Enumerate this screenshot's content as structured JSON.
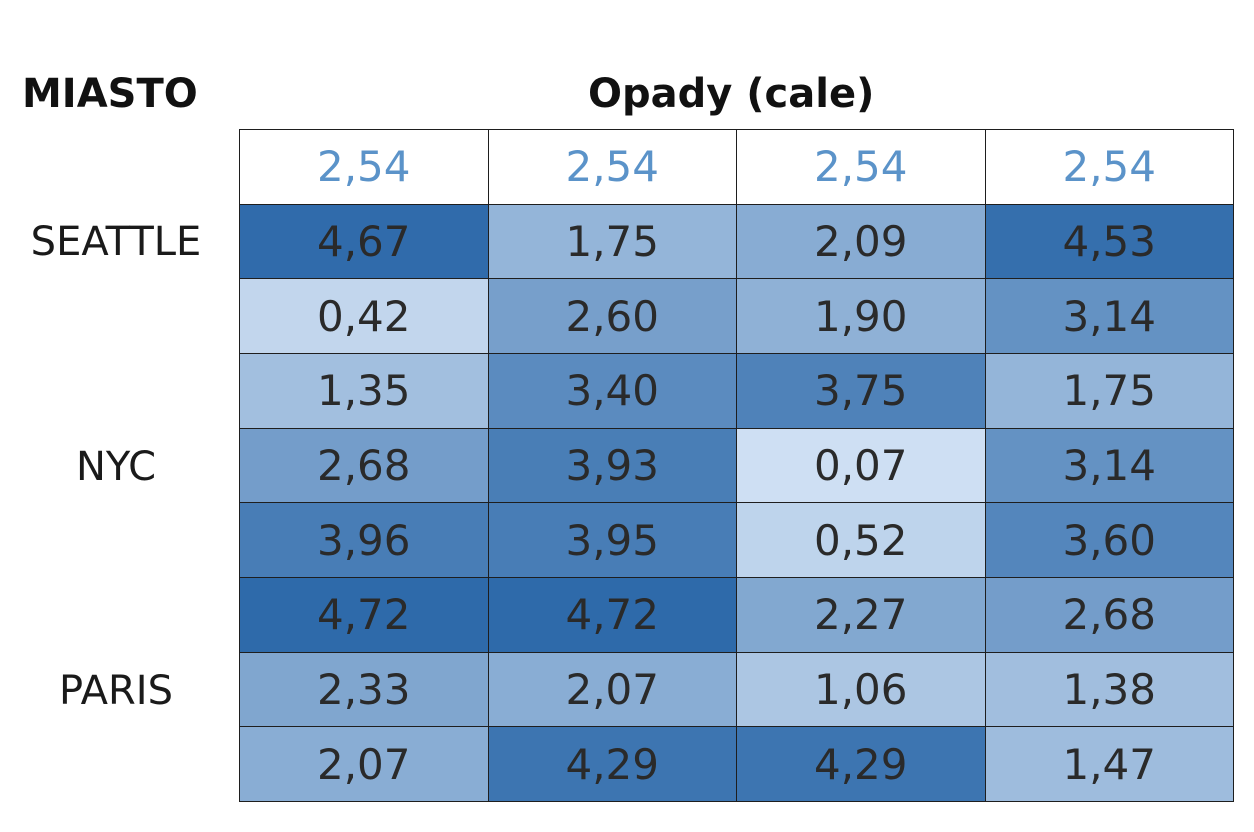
{
  "header": {
    "city_label": "MIASTO",
    "value_label": "Opady (cale)"
  },
  "cities": [
    "SEATTLE",
    "NYC",
    "PARIS"
  ],
  "colors": {
    "reference_text": "#5b93c9",
    "low": "#d0e1f4",
    "high": "#2e6aaa",
    "cell_text": "#2a2a2a",
    "border": "#1e1e1e"
  },
  "chart_data": {
    "type": "heatmap",
    "reference_row": [
      "2,54",
      "2,54",
      "2,54",
      "2,54"
    ],
    "rows": [
      {
        "city": "SEATTLE",
        "values": [
          "4,67",
          "1,75",
          "2,09",
          "4,53"
        ]
      },
      {
        "city": "",
        "values": [
          "0,42",
          "2,60",
          "1,90",
          "3,14"
        ]
      },
      {
        "city": "",
        "values": [
          "1,35",
          "3,40",
          "3,75",
          "1,75"
        ]
      },
      {
        "city": "NYC",
        "values": [
          "2,68",
          "3,93",
          "0,07",
          "3,14"
        ]
      },
      {
        "city": "",
        "values": [
          "3,96",
          "3,95",
          "0,52",
          "3,60"
        ]
      },
      {
        "city": "",
        "values": [
          "4,72",
          "4,72",
          "2,27",
          "2,68"
        ]
      },
      {
        "city": "PARIS",
        "values": [
          "2,33",
          "2,07",
          "1,06",
          "1,38"
        ]
      },
      {
        "city": "",
        "values": [
          "2,07",
          "4,29",
          "4,29",
          "1,47"
        ]
      }
    ],
    "value_range": [
      0,
      4.72
    ]
  }
}
